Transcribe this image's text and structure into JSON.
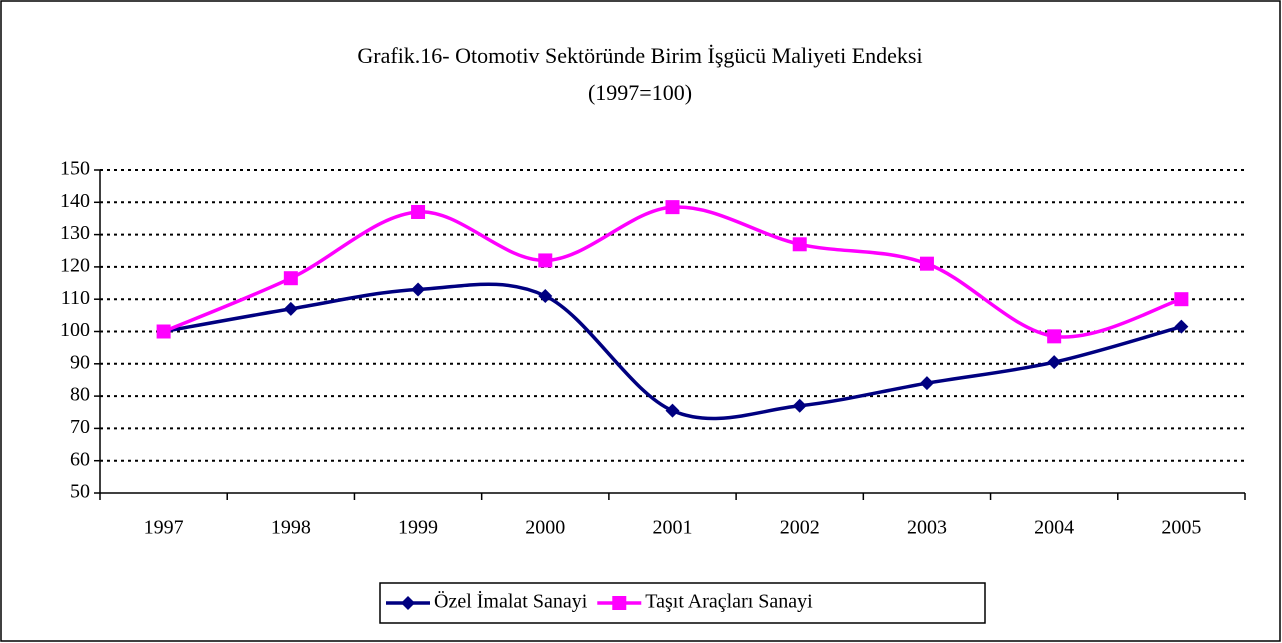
{
  "chart_data": {
    "type": "line",
    "title": "Grafik.16- Otomotiv Sektöründe Birim İşgücü Maliyeti Endeksi",
    "subtitle": "(1997=100)",
    "categories": [
      "1997",
      "1998",
      "1999",
      "2000",
      "2001",
      "2002",
      "2003",
      "2004",
      "2005"
    ],
    "series": [
      {
        "name": "Özel İmalat Sanayi",
        "color": "#000080",
        "marker": "diamond",
        "values": [
          100,
          107,
          113,
          111,
          75.5,
          77,
          84,
          90.5,
          101.5
        ]
      },
      {
        "name": "Taşıt Araçları Sanayi",
        "color": "#ff00ff",
        "marker": "square",
        "values": [
          100,
          116.5,
          137,
          122,
          138.5,
          127,
          121,
          98.5,
          110
        ]
      }
    ],
    "ylim": [
      50,
      150
    ],
    "yticks": [
      50,
      60,
      70,
      80,
      90,
      100,
      110,
      120,
      130,
      140,
      150
    ],
    "grid": true,
    "smooth": true,
    "legend": "bottom"
  }
}
